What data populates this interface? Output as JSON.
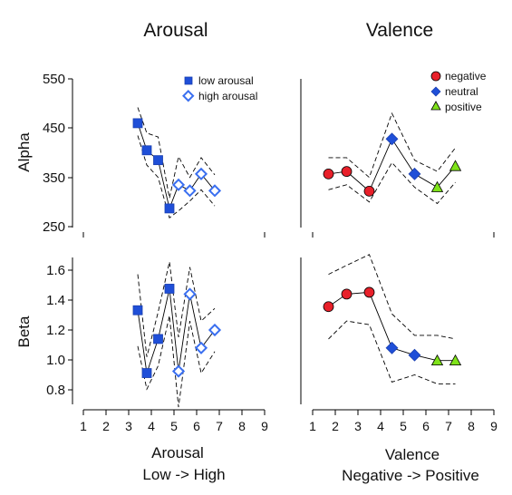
{
  "colors": {
    "low_arousal": "#1f4fd8",
    "high_arousal": "#3a6ff0",
    "negative": "#e8202a",
    "neutral": "#1f4fd8",
    "positive": "#7fe31a"
  },
  "chart_data": [
    {
      "type": "line",
      "panel": "arousal-alpha",
      "title": "Arousal",
      "ylabel": "Alpha",
      "ylim": [
        250,
        550
      ],
      "yticks": [
        "550",
        "450",
        "350",
        "250"
      ],
      "series": [
        {
          "name": "low arousal",
          "marker": "square-filled",
          "x": [
            3.4,
            3.8,
            4.3,
            4.8
          ],
          "y": [
            460,
            405,
            385,
            287
          ]
        },
        {
          "name": "high arousal",
          "marker": "diamond-open",
          "x": [
            5.2,
            5.7,
            6.2,
            6.8
          ],
          "y": [
            335,
            323,
            357,
            323
          ]
        }
      ],
      "ci_upper": {
        "x": [
          3.4,
          3.8,
          4.3,
          4.8,
          5.2,
          5.7,
          6.2,
          6.8
        ],
        "y": [
          492,
          440,
          432,
          308,
          392,
          350,
          390,
          355
        ]
      },
      "ci_lower": {
        "x": [
          3.4,
          3.8,
          4.3,
          4.8,
          5.2,
          5.7,
          6.2,
          6.8
        ],
        "y": [
          435,
          375,
          350,
          268,
          282,
          302,
          325,
          292
        ]
      }
    },
    {
      "type": "line",
      "panel": "valence-alpha",
      "title": "Valence",
      "ylim": [
        250,
        550
      ],
      "series": [
        {
          "name": "negative",
          "marker": "circle",
          "x": [
            1.7,
            2.5,
            3.5
          ],
          "y": [
            357,
            362,
            322
          ]
        },
        {
          "name": "neutral",
          "marker": "diamond",
          "x": [
            4.5,
            5.5
          ],
          "y": [
            428,
            357
          ]
        },
        {
          "name": "positive",
          "marker": "triangle",
          "x": [
            6.5,
            7.3
          ],
          "y": [
            330,
            373
          ]
        }
      ],
      "ci_upper": {
        "x": [
          1.7,
          2.5,
          3.5,
          4.5,
          5.5,
          6.5,
          7.3
        ],
        "y": [
          390,
          390,
          350,
          480,
          385,
          362,
          410
        ]
      },
      "ci_lower": {
        "x": [
          1.7,
          2.5,
          3.5,
          4.5,
          5.5,
          6.5,
          7.3
        ],
        "y": [
          325,
          335,
          300,
          380,
          330,
          297,
          340
        ]
      }
    },
    {
      "type": "line",
      "panel": "arousal-beta",
      "ylabel": "Beta",
      "xlabel": "Arousal",
      "xlabel2": "Low -> High",
      "ylim": [
        0.7,
        1.7
      ],
      "yticks": [
        "1.6",
        "1.4",
        "1.2",
        "1.0",
        "0.8"
      ],
      "xticks": [
        "1",
        "2",
        "3",
        "4",
        "5",
        "6",
        "7",
        "8",
        "9"
      ],
      "series": [
        {
          "name": "low arousal",
          "marker": "square-filled",
          "x": [
            3.4,
            3.8,
            4.3,
            4.8
          ],
          "y": [
            1.31,
            0.96,
            1.15,
            1.43
          ]
        },
        {
          "name": "high arousal",
          "marker": "diamond-open",
          "x": [
            5.2,
            5.7,
            6.2,
            6.8
          ],
          "y": [
            0.97,
            1.4,
            1.1,
            1.2
          ]
        }
      ],
      "ci_upper": {
        "x": [
          3.4,
          3.8,
          4.3,
          4.8,
          5.2,
          5.7,
          6.2,
          6.8
        ],
        "y": [
          1.51,
          1.05,
          1.3,
          1.58,
          1.16,
          1.55,
          1.25,
          1.32
        ]
      },
      "ci_lower": {
        "x": [
          3.4,
          3.8,
          4.3,
          4.8,
          5.2,
          5.7,
          6.2,
          6.8
        ],
        "y": [
          1.11,
          0.87,
          1.0,
          1.28,
          0.77,
          1.25,
          0.96,
          1.08
        ]
      }
    },
    {
      "type": "line",
      "panel": "valence-beta",
      "xlabel": "Valence",
      "xlabel2": "Negative -> Positive",
      "ylim": [
        0.7,
        1.7
      ],
      "xticks": [
        "1",
        "2",
        "3",
        "4",
        "5",
        "6",
        "7",
        "8",
        "9"
      ],
      "series": [
        {
          "name": "negative",
          "marker": "circle",
          "x": [
            1.7,
            2.5,
            3.5
          ],
          "y": [
            1.33,
            1.4,
            1.41
          ]
        },
        {
          "name": "neutral",
          "marker": "diamond",
          "x": [
            4.5,
            5.5
          ],
          "y": [
            1.1,
            1.06
          ]
        },
        {
          "name": "positive",
          "marker": "triangle",
          "x": [
            6.5,
            7.3
          ],
          "y": [
            1.03,
            1.03
          ]
        }
      ],
      "ci_upper": {
        "x": [
          1.7,
          2.5,
          3.5,
          4.5,
          5.5,
          6.5,
          7.3
        ],
        "y": [
          1.51,
          1.56,
          1.62,
          1.29,
          1.17,
          1.17,
          1.15
        ]
      },
      "ci_lower": {
        "x": [
          1.7,
          2.5,
          3.5,
          4.5,
          5.5,
          6.5,
          7.3
        ],
        "y": [
          1.15,
          1.25,
          1.23,
          0.91,
          0.95,
          0.9,
          0.9
        ]
      }
    }
  ]
}
